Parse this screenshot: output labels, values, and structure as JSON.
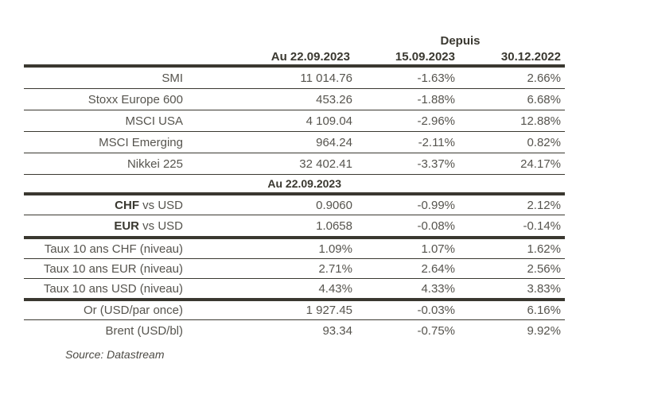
{
  "table": {
    "header": {
      "depuis_label": "Depuis",
      "col_value": "Au 22.09.2023",
      "col_since1": "15.09.2023",
      "col_since2": "30.12.2022"
    },
    "section2_header": "Au 22.09.2023",
    "rows_indices": [
      {
        "label": "SMI",
        "value": "11 014.76",
        "since1": "-1.63%",
        "since2": "2.66%"
      },
      {
        "label": "Stoxx Europe 600",
        "value": "453.26",
        "since1": "-1.88%",
        "since2": "6.68%"
      },
      {
        "label": "MSCI USA",
        "value": "4 109.04",
        "since1": "-2.96%",
        "since2": "12.88%"
      },
      {
        "label": "MSCI Emerging",
        "value": "964.24",
        "since1": "-2.11%",
        "since2": "0.82%"
      },
      {
        "label": "Nikkei 225",
        "value": "32 402.41",
        "since1": "-3.37%",
        "since2": "24.17%"
      }
    ],
    "rows_fx": [
      {
        "label_bold": "CHF",
        "label_rest": " vs USD",
        "value": "0.9060",
        "since1": "-0.99%",
        "since2": "2.12%"
      },
      {
        "label_bold": "EUR",
        "label_rest": " vs USD",
        "value": "1.0658",
        "since1": "-0.08%",
        "since2": "-0.14%"
      }
    ],
    "rows_rates": [
      {
        "label": "Taux 10 ans CHF (niveau)",
        "value": "1.09%",
        "since1": "1.07%",
        "since2": "1.62%"
      },
      {
        "label": "Taux 10 ans EUR (niveau)",
        "value": "2.71%",
        "since1": "2.64%",
        "since2": "2.56%"
      },
      {
        "label": "Taux 10 ans USD (niveau)",
        "value": "4.43%",
        "since1": "4.33%",
        "since2": "3.83%"
      }
    ],
    "rows_commodities": [
      {
        "label": "Or (USD/par once)",
        "value": "1 927.45",
        "since1": "-0.03%",
        "since2": "6.16%"
      },
      {
        "label": "Brent (USD/bl)",
        "value": "93.34",
        "since1": "-0.75%",
        "since2": "9.92%"
      }
    ],
    "source": "Source: Datastream"
  },
  "colors": {
    "line": "#3a3830",
    "text": "#56544e",
    "header_text": "#3a3830"
  }
}
